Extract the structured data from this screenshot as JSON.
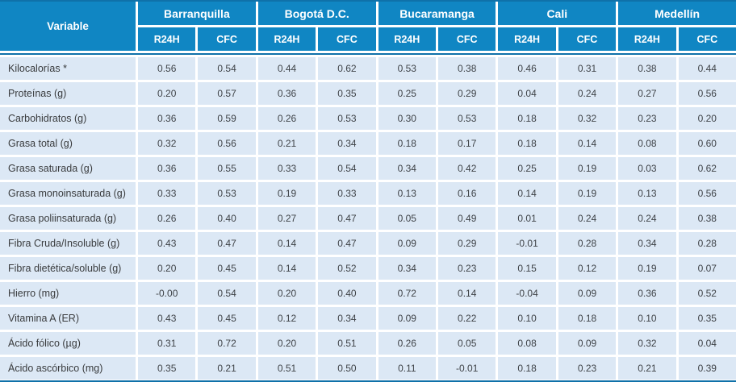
{
  "colors": {
    "header_blue": "#1086c3",
    "rule_blue": "#0f71a9",
    "row_bg": "#dce8f5",
    "header_text": "#ffffff",
    "body_text": "#3f4348",
    "label_text": "#393b3d"
  },
  "table": {
    "variable_header": "Variable",
    "subheaders": [
      "R24H",
      "CFC"
    ],
    "cities": [
      "Barranquilla",
      "Bogotá D.C.",
      "Bucaramanga",
      "Cali",
      "Medellín"
    ],
    "rows": [
      {
        "label": "Kilocalorías *",
        "values": [
          "0.56",
          "0.54",
          "0.44",
          "0.62",
          "0.53",
          "0.38",
          "0.46",
          "0.31",
          "0.38",
          "0.44"
        ]
      },
      {
        "label": "Proteínas (g)",
        "values": [
          "0.20",
          "0.57",
          "0.36",
          "0.35",
          "0.25",
          "0.29",
          "0.04",
          "0.24",
          "0.27",
          "0.56"
        ]
      },
      {
        "label": "Carbohidratos (g)",
        "values": [
          "0.36",
          "0.59",
          "0.26",
          "0.53",
          "0.30",
          "0.53",
          "0.18",
          "0.32",
          "0.23",
          "0.20"
        ]
      },
      {
        "label": "Grasa total (g)",
        "values": [
          "0.32",
          "0.56",
          "0.21",
          "0.34",
          "0.18",
          "0.17",
          "0.18",
          "0.14",
          "0.08",
          "0.60"
        ]
      },
      {
        "label": "Grasa saturada (g)",
        "values": [
          "0.36",
          "0.55",
          "0.33",
          "0.54",
          "0.34",
          "0.42",
          "0.25",
          "0.19",
          "0.03",
          "0.62"
        ]
      },
      {
        "label": "Grasa monoinsaturada (g)",
        "values": [
          "0.33",
          "0.53",
          "0.19",
          "0.33",
          "0.13",
          "0.16",
          "0.14",
          "0.19",
          "0.13",
          "0.56"
        ]
      },
      {
        "label": "Grasa poliinsaturada (g)",
        "values": [
          "0.26",
          "0.40",
          "0.27",
          "0.47",
          "0.05",
          "0.49",
          "0.01",
          "0.24",
          "0.24",
          "0.38"
        ]
      },
      {
        "label": "Fibra Cruda/Insoluble (g)",
        "values": [
          "0.43",
          "0.47",
          "0.14",
          "0.47",
          "0.09",
          "0.29",
          "-0.01",
          "0.28",
          "0.34",
          "0.28"
        ]
      },
      {
        "label": "Fibra dietética/soluble (g)",
        "values": [
          "0.20",
          "0.45",
          "0.14",
          "0.52",
          "0.34",
          "0.23",
          "0.15",
          "0.12",
          "0.19",
          "0.07"
        ]
      },
      {
        "label": "Hierro (mg)",
        "values": [
          "-0.00",
          "0.54",
          "0.20",
          "0.40",
          "0.72",
          "0.14",
          "-0.04",
          "0.09",
          "0.36",
          "0.52"
        ]
      },
      {
        "label": "Vitamina A (ER)",
        "values": [
          "0.43",
          "0.45",
          "0.12",
          "0.34",
          "0.09",
          "0.22",
          "0.10",
          "0.18",
          "0.10",
          "0.35"
        ]
      },
      {
        "label": "Ácido fólico (µg)",
        "values": [
          "0.31",
          "0.72",
          "0.20",
          "0.51",
          "0.26",
          "0.05",
          "0.08",
          "0.09",
          "0.32",
          "0.04"
        ]
      },
      {
        "label": "Ácido ascórbico (mg)",
        "values": [
          "0.35",
          "0.21",
          "0.51",
          "0.50",
          "0.11",
          "-0.01",
          "0.18",
          "0.23",
          "0.21",
          "0.39"
        ]
      }
    ]
  }
}
